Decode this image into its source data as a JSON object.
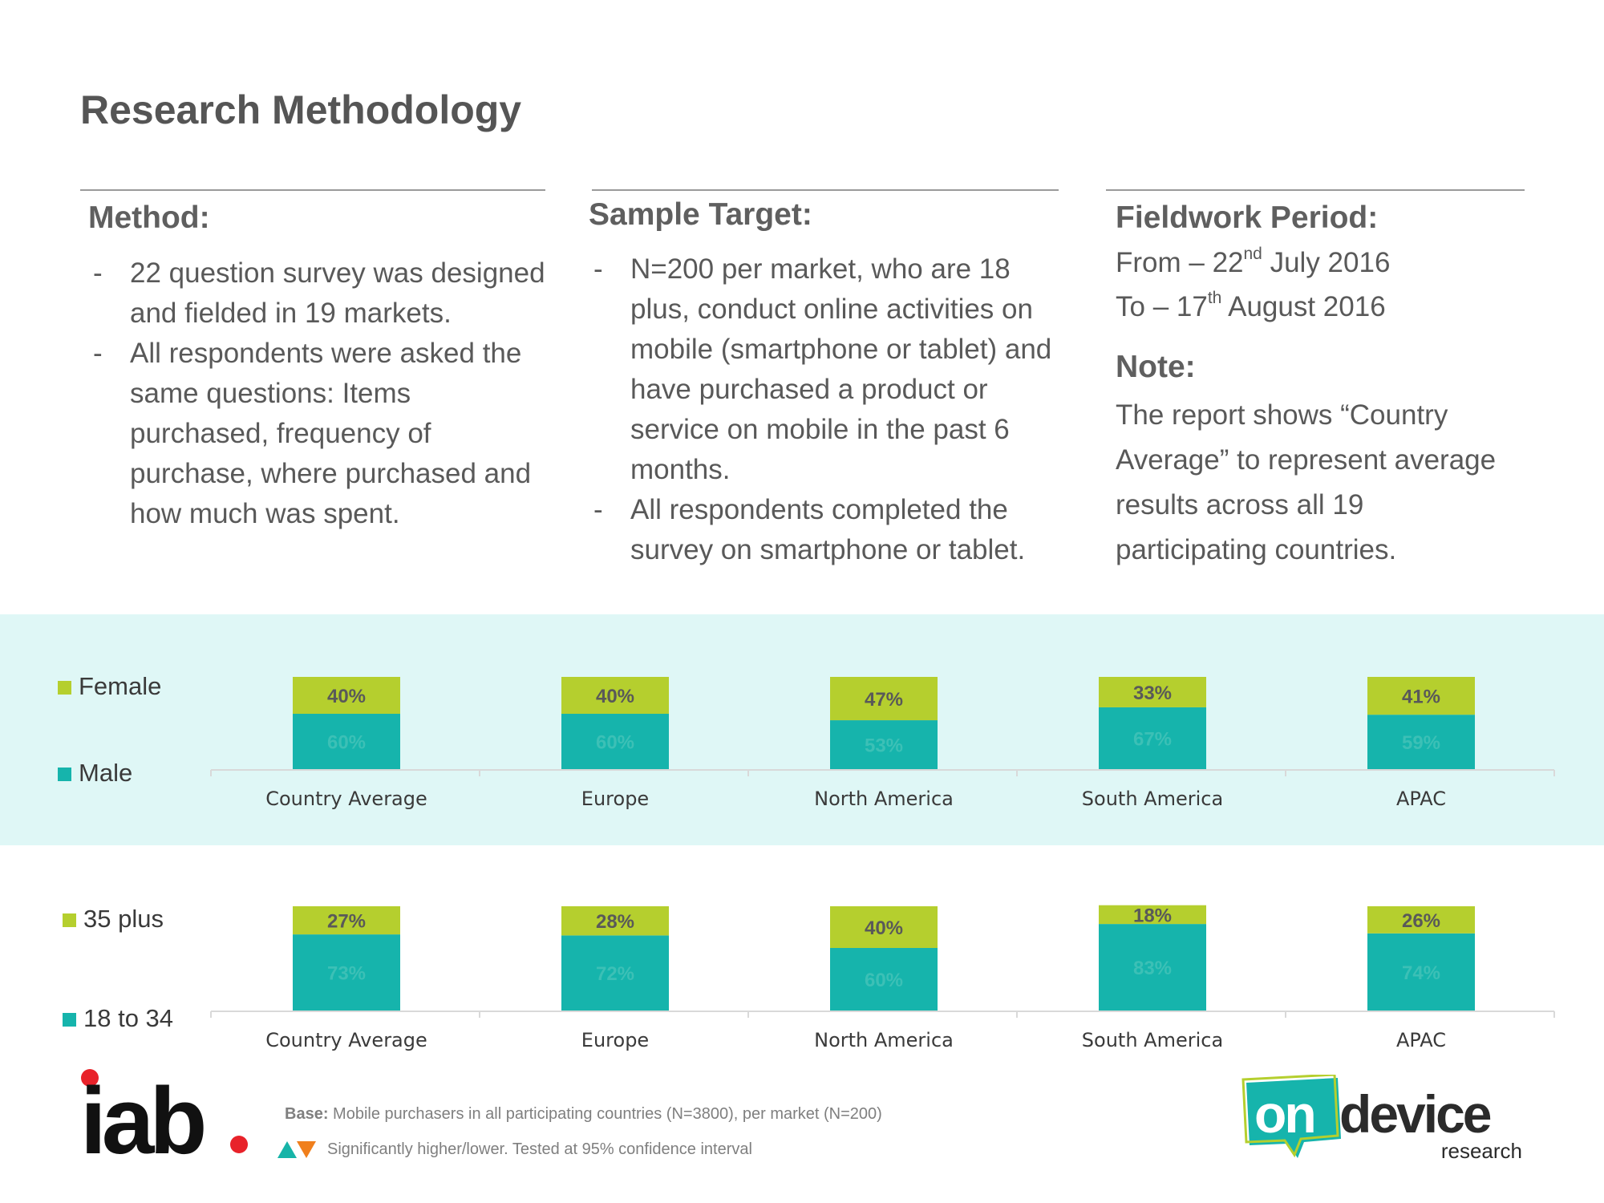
{
  "title": "Research Methodology",
  "method": {
    "heading": "Method:",
    "bullets": [
      "22 question survey was designed and fielded in 19 markets.",
      "All respondents were asked the same questions: Items purchased, frequency of purchase, where purchased and how much was spent."
    ]
  },
  "sample": {
    "heading": "Sample Target:",
    "bullets": [
      "N=200 per market, who are 18 plus, conduct online activities on mobile (smartphone or tablet) and have purchased a product or service on mobile in the past 6 months.",
      "All respondents completed the survey on smartphone or tablet."
    ]
  },
  "fieldwork": {
    "heading": "Fieldwork Period:",
    "from_prefix": "From – 22",
    "from_sup": "nd",
    "from_suffix": " July 2016",
    "to_prefix": "To – 17",
    "to_sup": "th",
    "to_suffix": " August 2016",
    "note_heading": "Note:",
    "note_text": "The report shows “Country Average” to represent average results across all 19 participating countries."
  },
  "bullet_dash": "-",
  "colors": {
    "lime": "#b5cf2e",
    "teal": "#16b4ac",
    "band": "#dff7f6",
    "label_dark": "#595959"
  },
  "chart_data": [
    {
      "type": "bar",
      "stacked": true,
      "categories": [
        "Country Average",
        "Europe",
        "North America",
        "South America",
        "APAC"
      ],
      "series": [
        {
          "name": "Male",
          "values": [
            60,
            60,
            53,
            67,
            59
          ],
          "color": "#16b4ac"
        },
        {
          "name": "Female",
          "values": [
            40,
            40,
            47,
            33,
            41
          ],
          "color": "#b5cf2e"
        }
      ],
      "value_suffix": "%",
      "legend": "left",
      "ylim": [
        0,
        100
      ],
      "grid": false
    },
    {
      "type": "bar",
      "stacked": true,
      "categories": [
        "Country Average",
        "Europe",
        "North America",
        "South America",
        "APAC"
      ],
      "series": [
        {
          "name": "18 to 34",
          "values": [
            73,
            72,
            60,
            83,
            74
          ],
          "color": "#16b4ac"
        },
        {
          "name": "35 plus",
          "values": [
            27,
            28,
            40,
            18,
            26
          ],
          "color": "#b5cf2e"
        }
      ],
      "value_suffix": "%",
      "legend": "left",
      "ylim": [
        0,
        100
      ],
      "grid": false
    }
  ],
  "footer": {
    "base_label": "Base:",
    "base_text": " Mobile purchasers in all participating countries (N=3800), per market (N=200)",
    "sig_text": "Significantly higher/lower. Tested at 95% confidence interval"
  },
  "logos": {
    "iab": "iab",
    "ondevice_on": "on",
    "ondevice_device": "device",
    "ondevice_research": "research"
  }
}
